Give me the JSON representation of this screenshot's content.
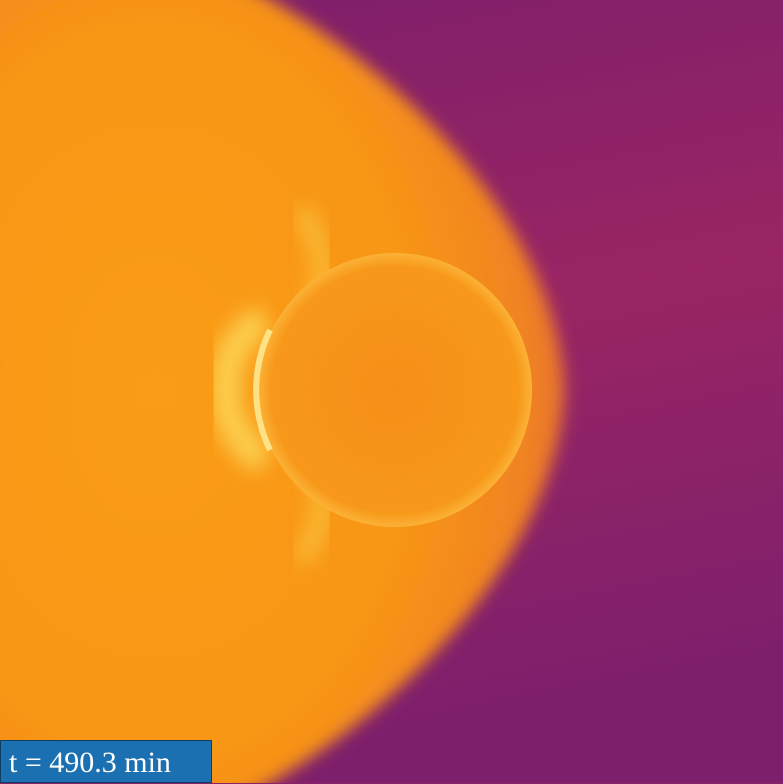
{
  "label": "t = 490.3 min"
}
